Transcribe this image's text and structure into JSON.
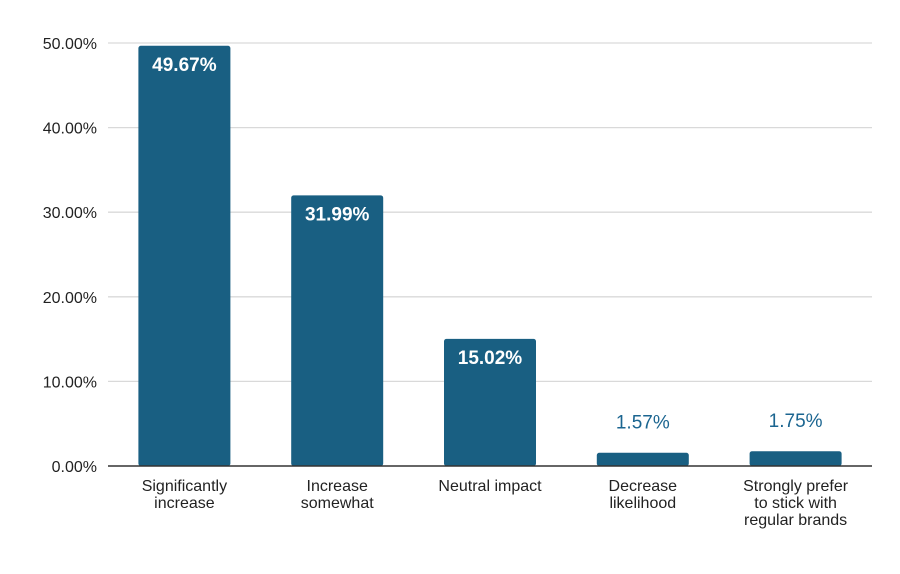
{
  "chart_data": {
    "type": "bar",
    "title": "",
    "xlabel": "",
    "ylabel": "",
    "categories": [
      [
        "Significantly",
        "increase"
      ],
      [
        "Increase",
        "somewhat"
      ],
      [
        "Neutral impact"
      ],
      [
        "Decrease",
        "likelihood"
      ],
      [
        "Strongly prefer",
        "to stick with",
        "regular brands"
      ]
    ],
    "values": [
      49.67,
      31.99,
      15.02,
      1.57,
      1.75
    ],
    "data_labels": [
      "49.67%",
      "31.99%",
      "15.02%",
      "1.57%",
      "1.75%"
    ],
    "ylim": [
      0,
      50
    ],
    "yticks": [
      0,
      10,
      20,
      30,
      40,
      50
    ],
    "ytick_labels": [
      "0.00%",
      "10.00%",
      "20.00%",
      "30.00%",
      "40.00%",
      "50.00%"
    ],
    "grid": true,
    "legend": "none",
    "colors": {
      "bar": "#195f82",
      "gridline": "#d9d9d9",
      "axis": "#333333",
      "label_outside": "#1b6590",
      "label_inside": "#ffffff"
    }
  }
}
